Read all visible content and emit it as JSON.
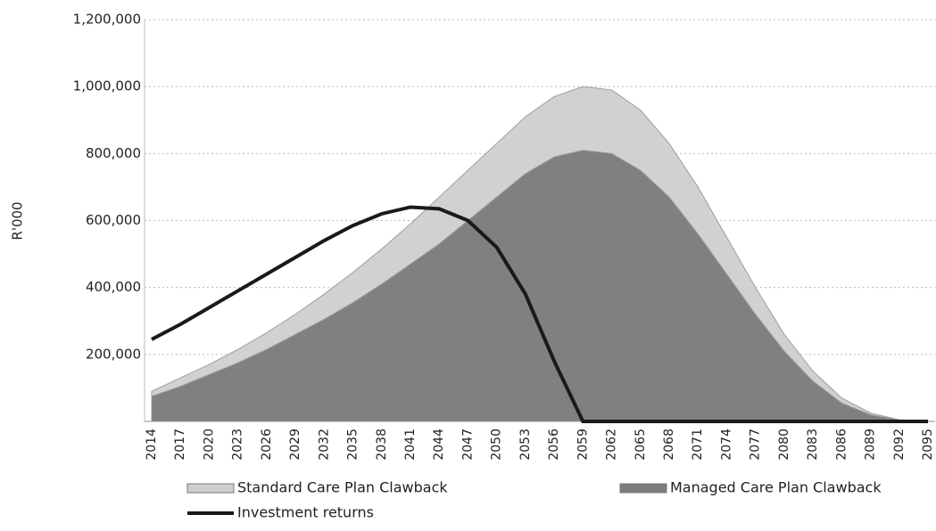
{
  "chart_data": {
    "type": "area",
    "y_label": "R'000",
    "categories": [
      "2014",
      "2017",
      "2020",
      "2023",
      "2026",
      "2029",
      "2032",
      "2035",
      "2038",
      "2041",
      "2044",
      "2047",
      "2050",
      "2053",
      "2056",
      "2059",
      "2062",
      "2065",
      "2068",
      "2071",
      "2074",
      "2077",
      "2080",
      "2083",
      "2086",
      "2089",
      "2092",
      "2095"
    ],
    "series": [
      {
        "name": "Standard Care Plan Clawback",
        "type": "area",
        "color": "#cfcfcf",
        "values": [
          90000,
          130000,
          170000,
          215000,
          265000,
          320000,
          380000,
          445000,
          515000,
          590000,
          670000,
          750000,
          830000,
          910000,
          970000,
          1000000,
          990000,
          930000,
          830000,
          700000,
          550000,
          400000,
          260000,
          150000,
          70000,
          25000,
          5000,
          0
        ]
      },
      {
        "name": "Managed Care Plan Clawback",
        "type": "area",
        "color": "#7c7c7c",
        "values": [
          75000,
          105000,
          140000,
          175000,
          215000,
          260000,
          305000,
          355000,
          410000,
          470000,
          530000,
          600000,
          670000,
          740000,
          790000,
          810000,
          800000,
          750000,
          670000,
          560000,
          440000,
          320000,
          210000,
          120000,
          55000,
          20000,
          4000,
          0
        ]
      },
      {
        "name": "Investment returns",
        "type": "line",
        "color": "#1a1a1a",
        "values": [
          245000,
          290000,
          340000,
          390000,
          440000,
          490000,
          540000,
          585000,
          620000,
          640000,
          635000,
          600000,
          520000,
          380000,
          180000,
          0,
          0,
          0,
          0,
          0,
          0,
          0,
          0,
          0,
          0,
          0,
          0,
          0
        ]
      }
    ],
    "ylim": [
      0,
      1200000
    ],
    "yticks": [
      {
        "value": 200000,
        "label": "200,000"
      },
      {
        "value": 400000,
        "label": "400,000"
      },
      {
        "value": 600000,
        "label": "600,000"
      },
      {
        "value": 800000,
        "label": "800,000"
      },
      {
        "value": 1000000,
        "label": "1,000,000"
      },
      {
        "value": 1200000,
        "label": "1,200,000"
      }
    ],
    "grid": true,
    "legend": "bottom"
  }
}
